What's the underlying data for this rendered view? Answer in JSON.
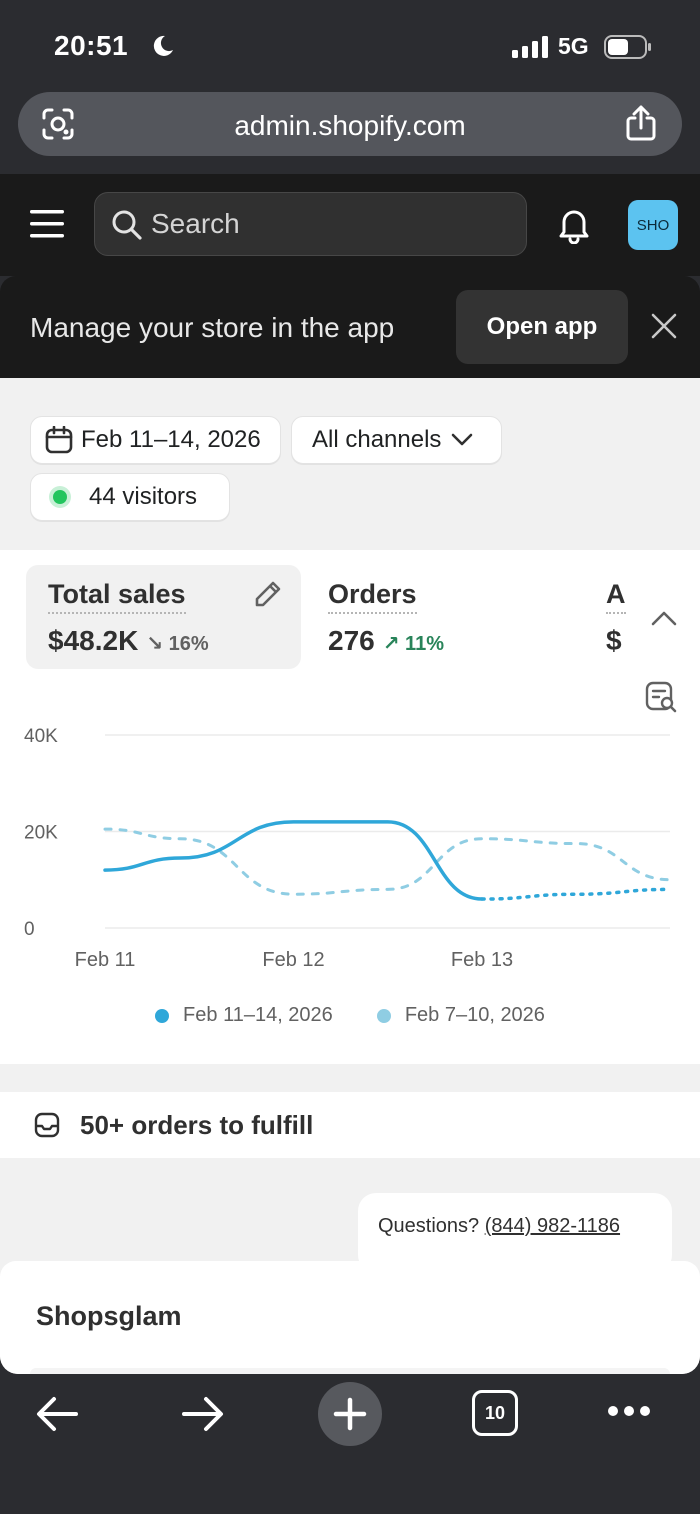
{
  "status_bar": {
    "time": "20:51",
    "network": "5G"
  },
  "browser": {
    "url": "admin.shopify.com",
    "tab_count": "10"
  },
  "header": {
    "search_placeholder": "Search",
    "avatar_initials": "SHO"
  },
  "banner": {
    "text": "Manage your store in the app",
    "button_label": "Open app"
  },
  "filters": {
    "date_range": "Feb 11–14, 2026",
    "channels": "All channels",
    "visitors": "44 visitors"
  },
  "metrics": {
    "total_sales": {
      "label": "Total sales",
      "value": "$48.2K",
      "delta": "16%",
      "direction": "down"
    },
    "orders": {
      "label": "Orders",
      "value": "276",
      "delta": "11%",
      "direction": "up"
    },
    "third": {
      "label": "A",
      "value": "$"
    }
  },
  "chart_data": {
    "type": "line",
    "x_ticks": [
      "Feb 11",
      "Feb 12",
      "Feb 13"
    ],
    "y_ticks": [
      "40K",
      "20K",
      "0"
    ],
    "ylim": [
      0,
      40000
    ],
    "series": [
      {
        "name": "Feb 11–14, 2026",
        "color": "#2fa7d9",
        "style": "solid",
        "x": [
          0,
          0.4,
          1.0,
          1.5,
          2.0
        ],
        "y": [
          12000,
          14500,
          22000,
          22000,
          6000
        ]
      },
      {
        "name": "Feb 11–14, 2026",
        "color": "#2fa7d9",
        "style": "dotted",
        "x": [
          2.0,
          2.5,
          3.0
        ],
        "y": [
          6000,
          7000,
          8000
        ]
      },
      {
        "name": "Feb 7–10, 2026",
        "color": "#8fcde3",
        "style": "dashed",
        "x": [
          0,
          0.4,
          1.0,
          1.5,
          2.0,
          2.5,
          3.0
        ],
        "y": [
          20500,
          18500,
          7000,
          8000,
          18500,
          17500,
          10000
        ]
      }
    ],
    "legend": [
      {
        "label": "Feb 11–14, 2026",
        "color": "#2fa7d9"
      },
      {
        "label": "Feb 7–10, 2026",
        "color": "#8fcde3"
      }
    ]
  },
  "fulfill": {
    "text": "50+ orders to fulfill"
  },
  "support": {
    "question": "Questions?",
    "phone": "(844) 982-1186"
  },
  "store": {
    "name": "Shopsglam"
  }
}
